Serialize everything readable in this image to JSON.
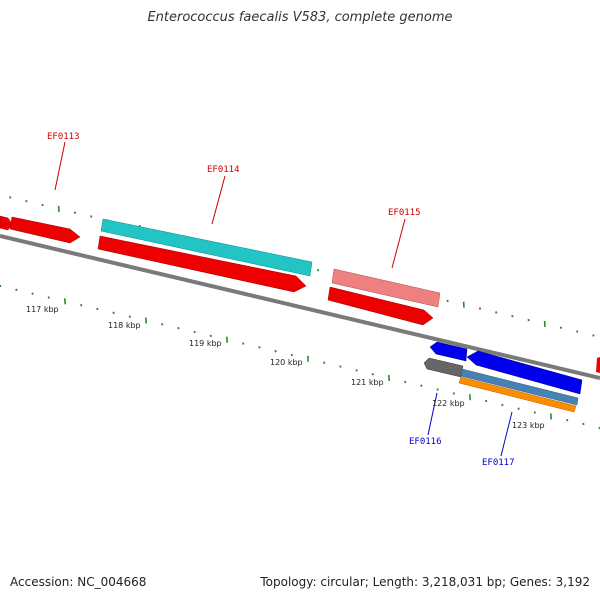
{
  "title": "Enterococcus faecalis V583, complete genome",
  "footer": {
    "accession": "Accession: NC_004668",
    "summary": "Topology: circular; Length: 3,218,031 bp; Genes: 3,192"
  },
  "colors": {
    "backbone": "#7a7a7a",
    "tick": "#2a8a2a",
    "forward_label": "#cc0000",
    "reverse_label": "#0000cc"
  },
  "kbp_labels": [
    "117 kbp",
    "118 kbp",
    "119 kbp",
    "120 kbp",
    "121 kbp",
    "122 kbp",
    "123 kbp"
  ],
  "gene_labels": {
    "EF0113": "EF0113",
    "EF0114": "EF0114",
    "EF0115": "EF0115",
    "EF0116": "EF0116",
    "EF0117": "EF0117"
  }
}
